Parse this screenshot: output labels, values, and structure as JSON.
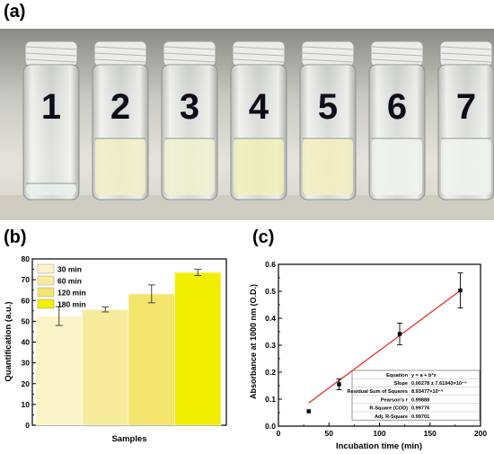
{
  "panels": {
    "a": "(a)",
    "b": "(b)",
    "c": "(c)"
  },
  "photo": {
    "vial_numbers": [
      "1",
      "2",
      "3",
      "4",
      "5",
      "6",
      "7"
    ],
    "liquid_colors": [
      "#e6f0ec",
      "#f1efc6",
      "#eef1cf",
      "#efefb8",
      "#f2efc0",
      "#eef2ec",
      "#eef2ee"
    ]
  },
  "chart_data": [
    {
      "type": "bar",
      "ylabel": "Quantification (a.u.)",
      "xlabel": "Samples",
      "ylim": [
        0,
        80
      ],
      "yticks": [
        0,
        10,
        20,
        30,
        40,
        50,
        60,
        70,
        80
      ],
      "legend_position": "top-left",
      "series": [
        {
          "name": "30 min",
          "value": 52.5,
          "error": 4.5,
          "color": "#fbf4c8"
        },
        {
          "name": "60 min",
          "value": 55.7,
          "error": 1.2,
          "color": "#f7ec9c"
        },
        {
          "name": "120 min",
          "value": 63.2,
          "error": 4.3,
          "color": "#f4e56c"
        },
        {
          "name": "180 min",
          "value": 73.5,
          "error": 1.5,
          "color": "#f2ee00"
        }
      ]
    },
    {
      "type": "scatter",
      "xlabel": "Incubation time (min)",
      "ylabel": "Absorbance at 1000 nm (O.D.)",
      "xlim": [
        0,
        200
      ],
      "ylim": [
        0.0,
        0.6
      ],
      "xticks": [
        0,
        50,
        100,
        150,
        200
      ],
      "yticks": [
        "0.0",
        "0.1",
        "0.2",
        "0.3",
        "0.4",
        "0.5",
        "0.6"
      ],
      "points": [
        {
          "x": 30,
          "y": 0.055,
          "error": 0.0
        },
        {
          "x": 60,
          "y": 0.155,
          "error": 0.02
        },
        {
          "x": 120,
          "y": 0.342,
          "error": 0.04
        },
        {
          "x": 180,
          "y": 0.503,
          "error": 0.065
        }
      ],
      "fit": {
        "x": [
          30,
          180
        ],
        "y": [
          0.0857,
          0.5027
        ],
        "color": "#e8231c"
      },
      "fit_table": [
        {
          "label": "Equation",
          "value": "y = a + b*x"
        },
        {
          "label": "Slope",
          "value": "0.00278 ± 7.61943×10⁻⁴"
        },
        {
          "label": "Residual Sum of Squares",
          "value": "8.93477×10⁻⁴"
        },
        {
          "label": "Pearson's r",
          "value": "0.99888"
        },
        {
          "label": "R-Square (COD)",
          "value": "0.99776"
        },
        {
          "label": "Adj. R-Square",
          "value": "0.99701"
        }
      ]
    }
  ]
}
